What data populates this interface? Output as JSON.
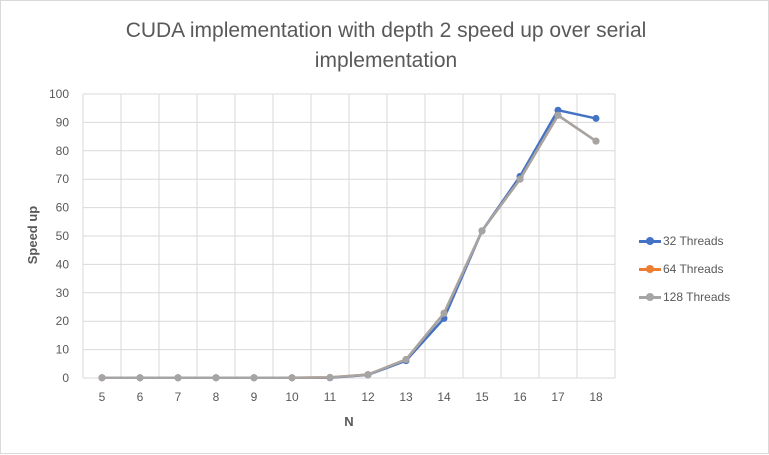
{
  "chart_data": {
    "type": "line",
    "title": "CUDA implementation with depth 2 speed up over serial implementation",
    "title_lines": [
      "CUDA implementation with depth 2 speed up over serial",
      "implementation"
    ],
    "xlabel": "N",
    "ylabel": "Speed up",
    "categories": [
      "5",
      "6",
      "7",
      "8",
      "9",
      "10",
      "11",
      "12",
      "13",
      "14",
      "15",
      "16",
      "17",
      "18"
    ],
    "ylim": [
      0,
      100
    ],
    "yticks": [
      0,
      10,
      20,
      30,
      40,
      50,
      60,
      70,
      80,
      90,
      100
    ],
    "grid": true,
    "legend_position": "right",
    "series": [
      {
        "name": "32 Threads",
        "color": "#4472c4",
        "values": [
          0.1,
          0.1,
          0.1,
          0.1,
          0.1,
          0.1,
          0.1,
          1.1,
          6.1,
          21.0,
          51.8,
          71.0,
          94.3,
          91.4
        ]
      },
      {
        "name": "64 Threads",
        "color": "#ed7d31",
        "values": [
          0.1,
          0.1,
          0.1,
          0.1,
          0.1,
          0.1,
          0.2,
          1.2,
          6.5,
          22.8,
          51.8,
          70.0,
          92.5,
          83.4
        ]
      },
      {
        "name": "128 Threads",
        "color": "#a5a5a5",
        "values": [
          0.1,
          0.1,
          0.1,
          0.1,
          0.1,
          0.1,
          0.2,
          1.2,
          6.5,
          22.8,
          51.8,
          70.0,
          92.5,
          83.4
        ]
      }
    ]
  }
}
